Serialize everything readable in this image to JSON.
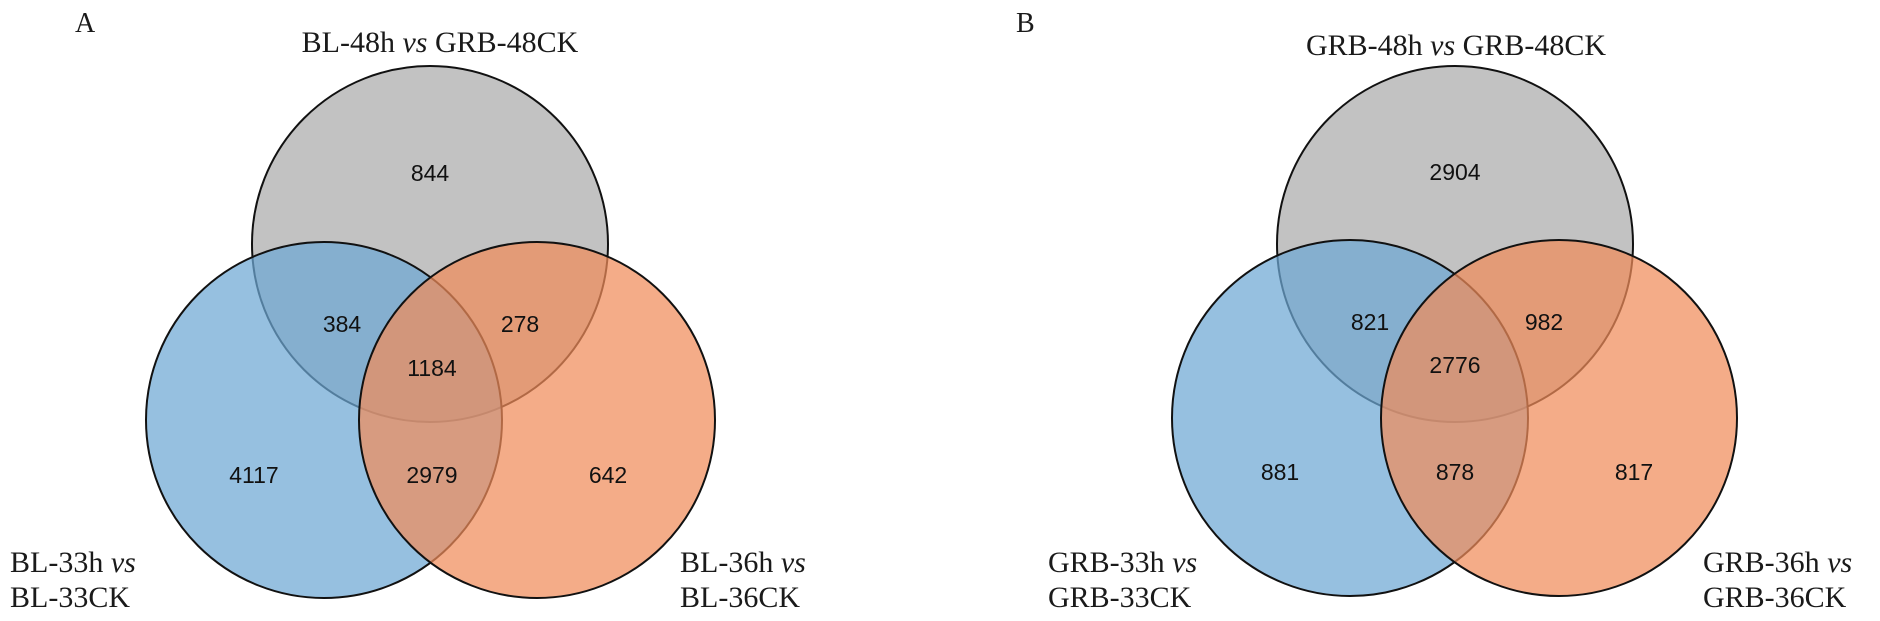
{
  "colors": {
    "top_set": "#b5b5b5",
    "left_set": "#6ea8d4",
    "right_set": "#f08c5a"
  },
  "panels": [
    {
      "letter": "A",
      "sets": {
        "top": {
          "line1": "BL-48h",
          "vs": "vs",
          "line1_rest": "GRB-48CK"
        },
        "left": {
          "line1": "BL-33h",
          "vs": "vs",
          "line2": "BL-33CK"
        },
        "right": {
          "line1": "BL-36h",
          "vs": "vs",
          "line2": "BL-36CK"
        }
      },
      "counts": {
        "top_only": "844",
        "left_only": "4117",
        "right_only": "642",
        "top_left": "384",
        "top_right": "278",
        "left_right": "2979",
        "all": "1184"
      }
    },
    {
      "letter": "B",
      "sets": {
        "top": {
          "line1": "GRB-48h",
          "vs": "vs",
          "line1_rest": "GRB-48CK"
        },
        "left": {
          "line1": "GRB-33h",
          "vs": "vs",
          "line2": "GRB-33CK"
        },
        "right": {
          "line1": "GRB-36h",
          "vs": "vs",
          "line2": "GRB-36CK"
        }
      },
      "counts": {
        "top_only": "2904",
        "left_only": "881",
        "right_only": "817",
        "top_left": "821",
        "top_right": "982",
        "left_right": "878",
        "all": "2776"
      }
    }
  ]
}
